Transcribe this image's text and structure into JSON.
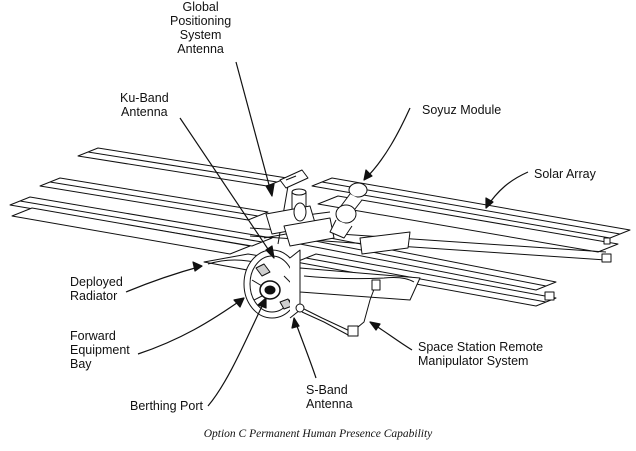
{
  "caption": "Option C Permanent Human Presence Capability",
  "labels": {
    "gps_antenna": [
      "Global",
      "Positioning",
      "System",
      "Antenna"
    ],
    "ku_band_antenna": [
      "Ku-Band",
      "Antenna"
    ],
    "soyuz_module": [
      "Soyuz Module"
    ],
    "solar_array": [
      "Solar Array"
    ],
    "deployed_radiator": [
      "Deployed",
      "Radiator"
    ],
    "forward_equipment_bay": [
      "Forward",
      "Equipment",
      "Bay"
    ],
    "berthing_port": [
      "Berthing Port"
    ],
    "s_band_antenna": [
      "S-Band",
      "Antenna"
    ],
    "remote_manipulator": [
      "Space Station Remote",
      "Manipulator System"
    ]
  },
  "colors": {
    "ink": "#111111",
    "panel_fill": "#ffffff",
    "shade": "#cfcfcf"
  }
}
